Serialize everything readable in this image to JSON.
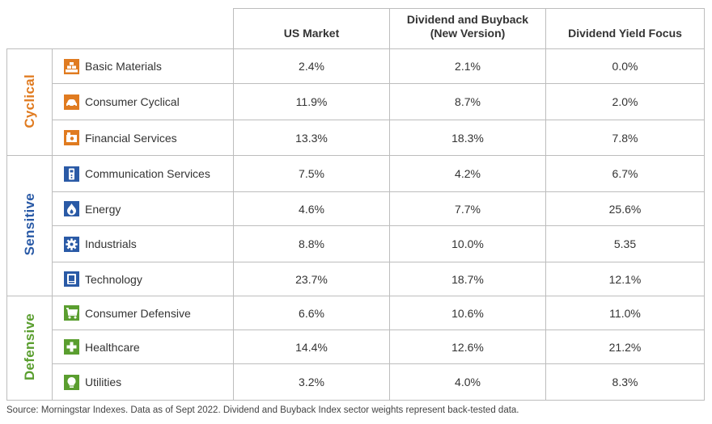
{
  "chart_data": {
    "type": "table",
    "columns": [
      "US Market",
      "Dividend and Buyback\n(New Version)",
      "Dividend Yield Focus"
    ],
    "groups": [
      {
        "label": "Cyclical",
        "color": "#e07b20",
        "rows": [
          {
            "sector": "Basic Materials",
            "icon": "basic-materials-icon",
            "values": [
              "2.4%",
              "2.1%",
              "0.0%"
            ]
          },
          {
            "sector": "Consumer Cyclical",
            "icon": "consumer-cyclical-icon",
            "values": [
              "11.9%",
              "8.7%",
              "2.0%"
            ]
          },
          {
            "sector": "Financial Services",
            "icon": "financial-services-icon",
            "values": [
              "13.3%",
              "18.3%",
              "7.8%"
            ]
          }
        ]
      },
      {
        "label": "Sensitive",
        "color": "#2a5aa6",
        "rows": [
          {
            "sector": "Communication Services",
            "icon": "communication-services-icon",
            "values": [
              "7.5%",
              "4.2%",
              "6.7%"
            ]
          },
          {
            "sector": "Energy",
            "icon": "energy-icon",
            "values": [
              "4.6%",
              "7.7%",
              "25.6%"
            ]
          },
          {
            "sector": "Industrials",
            "icon": "industrials-icon",
            "values": [
              "8.8%",
              "10.0%",
              "5.35"
            ]
          },
          {
            "sector": "Technology",
            "icon": "technology-icon",
            "values": [
              "23.7%",
              "18.7%",
              "12.1%"
            ]
          }
        ]
      },
      {
        "label": "Defensive",
        "color": "#5a9e2f",
        "rows": [
          {
            "sector": "Consumer Defensive",
            "icon": "consumer-defensive-icon",
            "values": [
              "6.6%",
              "10.6%",
              "11.0%"
            ]
          },
          {
            "sector": "Healthcare",
            "icon": "healthcare-icon",
            "values": [
              "14.4%",
              "12.6%",
              "21.2%"
            ]
          },
          {
            "sector": "Utilities",
            "icon": "utilities-icon",
            "values": [
              "3.2%",
              "4.0%",
              "8.3%"
            ]
          }
        ]
      }
    ]
  },
  "footnote": "Source: Morningstar Indexes. Data as of Sept 2022. Dividend and Buyback Index sector weights represent back-tested data."
}
